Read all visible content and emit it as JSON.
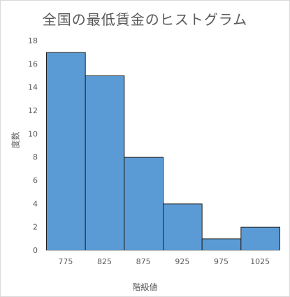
{
  "chart_data": {
    "type": "bar",
    "title": "全国の最低賃金のヒストグラム",
    "xlabel": "階級値",
    "ylabel": "度数",
    "categories": [
      "775",
      "825",
      "875",
      "925",
      "975",
      "1025"
    ],
    "values": [
      17,
      15,
      8,
      4,
      1,
      2
    ],
    "ylim": [
      0,
      18
    ],
    "yticks": [
      "0",
      "2",
      "4",
      "6",
      "8",
      "10",
      "12",
      "14",
      "16",
      "18"
    ],
    "grid": false,
    "legend": "none",
    "colors": {
      "bar_fill": "#5b9bd5",
      "bar_stroke": "#1f1f1f",
      "axis": "#bfbfbf",
      "text": "#595959"
    }
  }
}
